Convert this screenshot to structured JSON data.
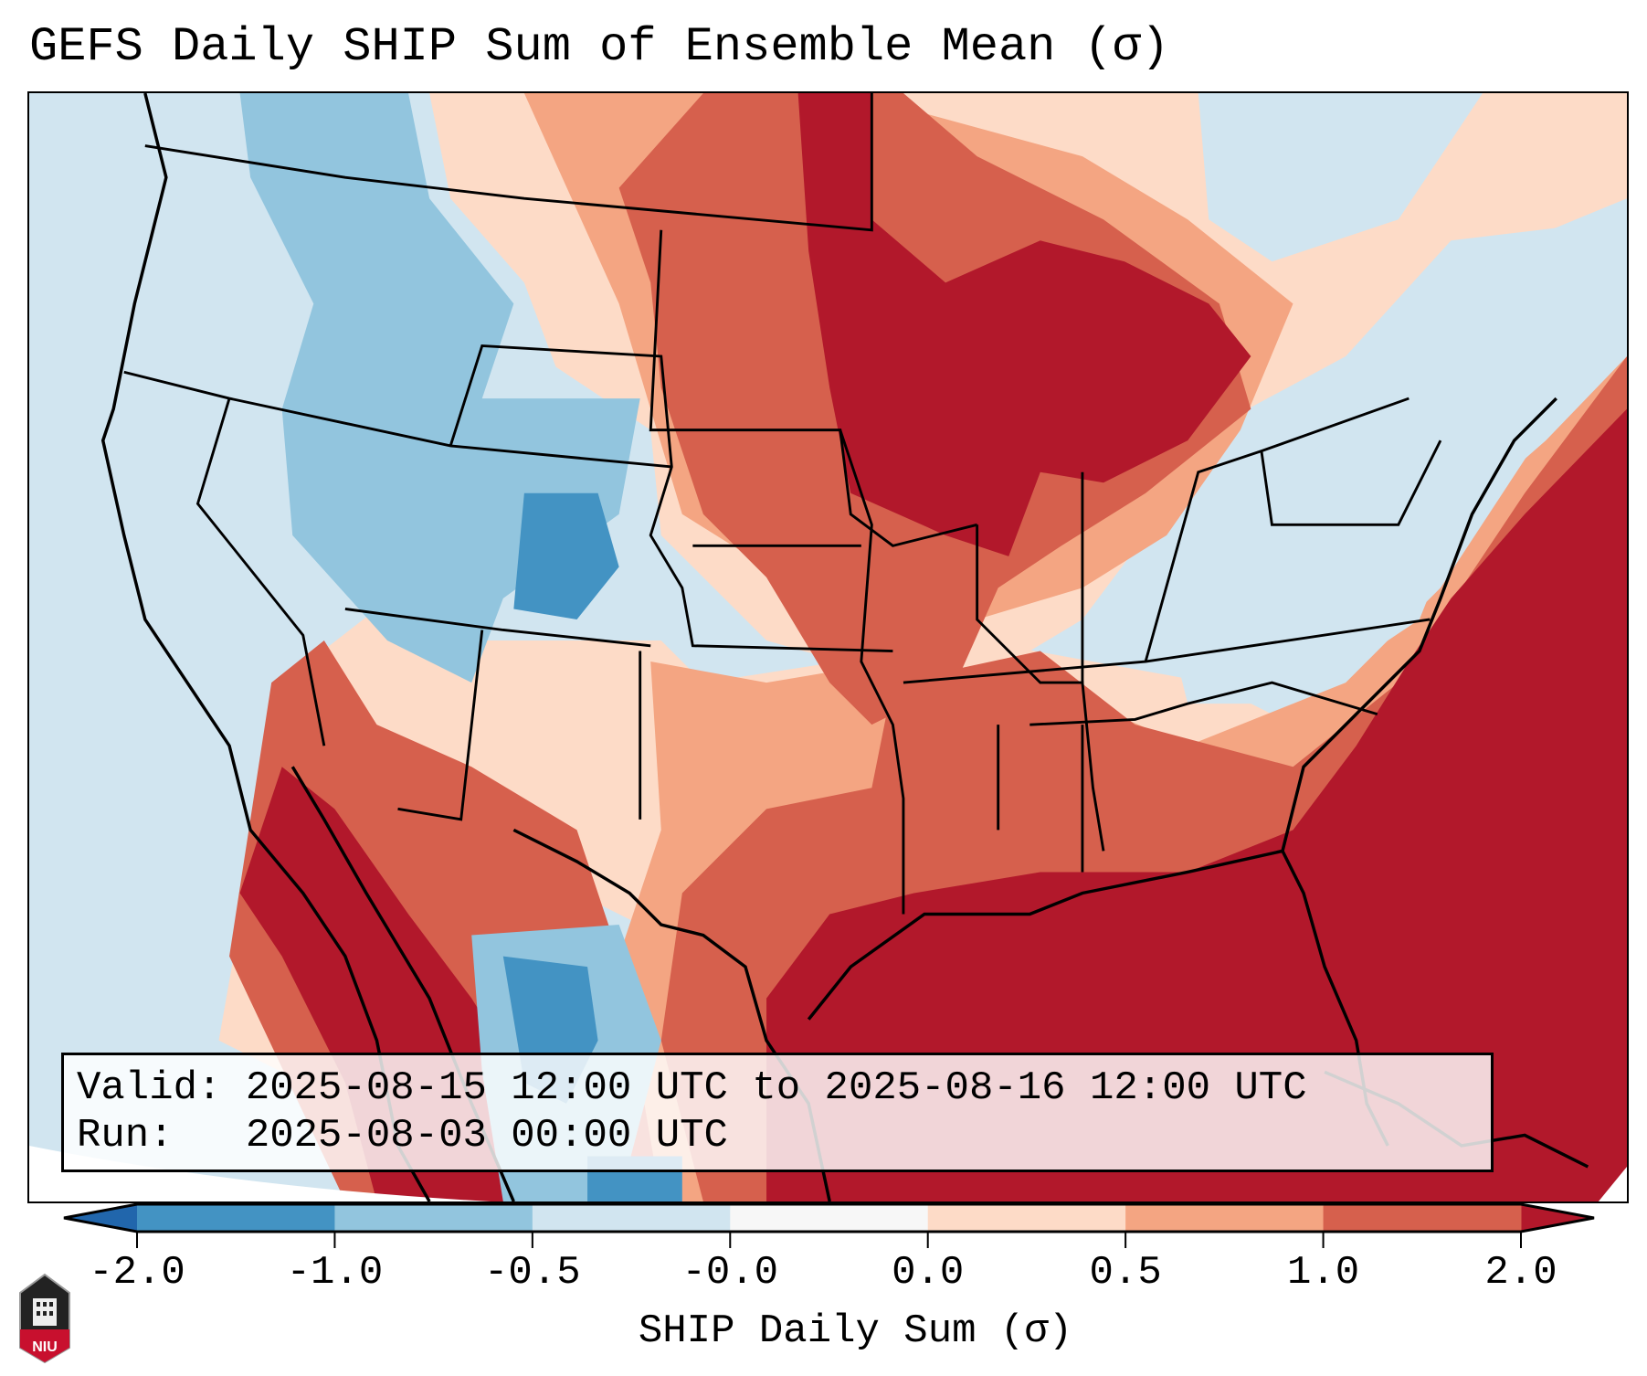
{
  "title": "GEFS Daily SHIP Sum of Ensemble Mean (σ)",
  "info": {
    "valid_line": "Valid: 2025-08-15 12:00 UTC to 2025-08-16 12:00 UTC",
    "run_line": "Run:   2025-08-03 00:00 UTC"
  },
  "chart_data": {
    "type": "heatmap",
    "title": "GEFS Daily SHIP Sum of Ensemble Mean (σ)",
    "xlabel": "",
    "ylabel": "",
    "colorbar": {
      "label": "SHIP Daily Sum (σ)",
      "ticks": [
        "-2.0",
        "-1.0",
        "-0.5",
        "-0.0",
        "0.0",
        "0.5",
        "1.0",
        "2.0"
      ],
      "colors": [
        "#4393c3",
        "#92c5de",
        "#d1e5f0",
        "#f7f7f7",
        "#fddbc7",
        "#f4a582",
        "#d6604d"
      ],
      "under_color": "#2166ac",
      "over_color": "#b2182b",
      "extend": "both"
    },
    "summary": "Highest values (>2) over the Gulf of Mexico, southeast US coast and western Atlantic, upper Midwest; negative values over the Interior West, Colorado, Northeast and northern Mexico"
  },
  "logo": {
    "text": "NIU"
  }
}
